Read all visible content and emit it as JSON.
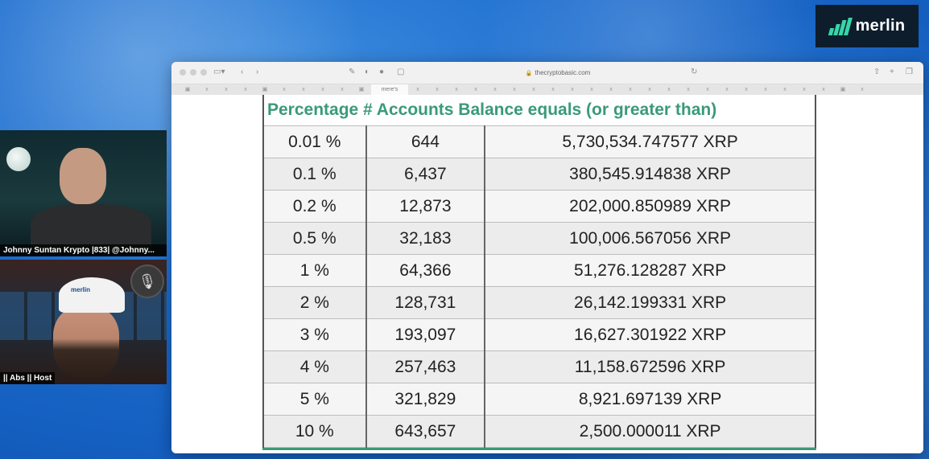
{
  "brand": {
    "logo_text": "merlin",
    "accent": "#37d6a8"
  },
  "browser": {
    "url": "thecryptobasic.com",
    "active_tab_label": "mere's"
  },
  "table": {
    "header": "Percentage # Accounts Balance equals (or greater than)",
    "header_color": "#3a9a78",
    "rows": [
      {
        "pct": "0.01 %",
        "accounts": "644",
        "balance": "5,730,534.747577 XRP"
      },
      {
        "pct": "0.1 %",
        "accounts": "6,437",
        "balance": "380,545.914838 XRP"
      },
      {
        "pct": "0.2 %",
        "accounts": "12,873",
        "balance": "202,000.850989 XRP"
      },
      {
        "pct": "0.5 %",
        "accounts": "32,183",
        "balance": "100,006.567056 XRP"
      },
      {
        "pct": "1 %",
        "accounts": "64,366",
        "balance": "51,276.128287 XRP"
      },
      {
        "pct": "2 %",
        "accounts": "128,731",
        "balance": "26,142.199331 XRP"
      },
      {
        "pct": "3 %",
        "accounts": "193,097",
        "balance": "16,627.301922 XRP"
      },
      {
        "pct": "4 %",
        "accounts": "257,463",
        "balance": "11,158.672596 XRP"
      },
      {
        "pct": "5 %",
        "accounts": "321,829",
        "balance": "8,921.697139 XRP"
      },
      {
        "pct": "10 %",
        "accounts": "643,657",
        "balance": "2,500.000011 XRP"
      }
    ]
  },
  "cams": [
    {
      "label": "Johnny Suntan Krypto |833| @Johnny..."
    },
    {
      "label": "|| Abs || Host",
      "cap_text": "merlin"
    }
  ]
}
